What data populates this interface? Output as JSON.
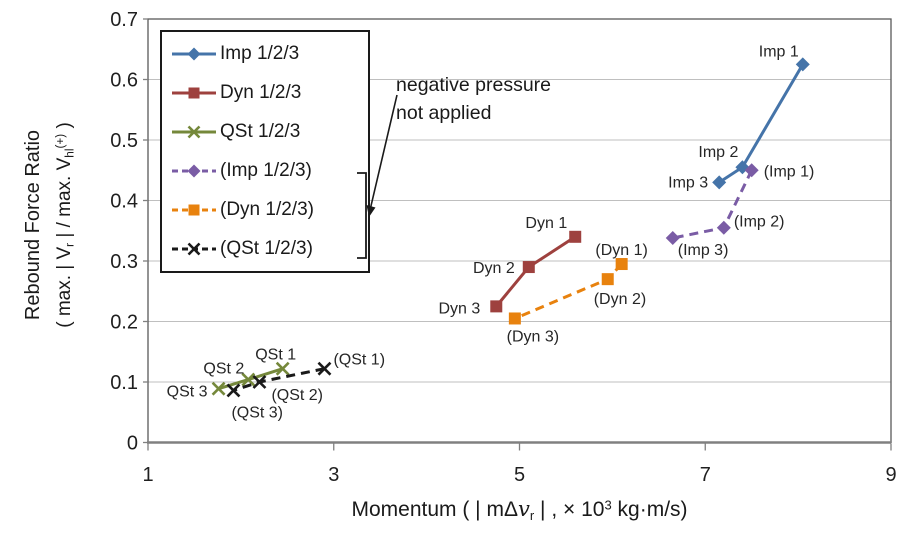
{
  "page": {
    "background": "#ffffff"
  },
  "annotation": {
    "line1": "negative pressure",
    "line2": "not applied"
  },
  "chart_data": {
    "type": "line",
    "title": "",
    "xlabel_parts": [
      {
        "t": "Momentum ( | mΔ"
      },
      {
        "t": "v",
        "s": "i"
      },
      {
        "t": "r",
        "s": "sub"
      },
      {
        "t": " | ,  × 10"
      },
      {
        "t": "3",
        "s": "sup"
      },
      {
        "t": " kg·m/s)"
      }
    ],
    "ylabel_line1": "Rebound Force Ratio",
    "ylabel_line2_parts": [
      {
        "t": "( max. | V"
      },
      {
        "t": "r",
        "s": "sub"
      },
      {
        "t": " | / max. V"
      },
      {
        "t": "hl",
        "s": "sub"
      },
      {
        "t": "(+)",
        "s": "sup"
      },
      {
        "t": " )"
      }
    ],
    "xlim": [
      1,
      9
    ],
    "ylim": [
      0,
      0.7
    ],
    "x_tick_values": [
      1,
      3,
      5,
      7,
      9
    ],
    "x_tick_labels": [
      "1",
      "3",
      "5",
      "7",
      "9"
    ],
    "y_tick_values": [
      0,
      0.1,
      0.2,
      0.3,
      0.4,
      0.5,
      0.6,
      0.7
    ],
    "y_tick_labels": [
      "0",
      "0.1",
      "0.2",
      "0.3",
      "0.4",
      "0.5",
      "0.6",
      "0.7"
    ],
    "grid": "horizontal-only",
    "legend_position": "inside-top-left",
    "colors": {
      "grid": "#bfbfbf",
      "axis": "#808080",
      "border": "#595959",
      "text": "#1f1f1f"
    },
    "series": [
      {
        "name": "Imp 1/2/3",
        "color": "#4574A9",
        "line": "solid",
        "marker": "diamond",
        "points": [
          {
            "x": 8.05,
            "y": 0.625,
            "label": "Imp 1",
            "anchor": "end",
            "dx": -4,
            "dy": -8
          },
          {
            "x": 7.4,
            "y": 0.455,
            "label": "Imp 2",
            "anchor": "end",
            "dx": -4,
            "dy": -10
          },
          {
            "x": 7.15,
            "y": 0.43,
            "label": "Imp 3",
            "anchor": "end",
            "dx": -11,
            "dy": 5
          }
        ]
      },
      {
        "name": "Dyn 1/2/3",
        "color": "#9E413E",
        "line": "solid",
        "marker": "square",
        "points": [
          {
            "x": 5.6,
            "y": 0.34,
            "label": "Dyn 1",
            "anchor": "end",
            "dx": -8,
            "dy": -9
          },
          {
            "x": 5.1,
            "y": 0.29,
            "label": "Dyn 2",
            "anchor": "end",
            "dx": -14,
            "dy": 6
          },
          {
            "x": 4.75,
            "y": 0.225,
            "label": "Dyn 3",
            "anchor": "end",
            "dx": -16,
            "dy": 7
          }
        ]
      },
      {
        "name": "QSt 1/2/3",
        "color": "#75883B",
        "line": "solid",
        "marker": "x",
        "points": [
          {
            "x": 2.45,
            "y": 0.122,
            "label": "QSt 1",
            "anchor": "middle",
            "dx": -7,
            "dy": -9
          },
          {
            "x": 2.08,
            "y": 0.104,
            "label": "QSt 2",
            "anchor": "end",
            "dx": -4,
            "dy": -6
          },
          {
            "x": 1.76,
            "y": 0.089,
            "label": "QSt 3",
            "anchor": "end",
            "dx": -11,
            "dy": 8
          }
        ]
      },
      {
        "name": "(Imp 1/2/3)",
        "color": "#7A5CA5",
        "line": "dashed",
        "marker": "diamond",
        "points": [
          {
            "x": 7.5,
            "y": 0.45,
            "label": "(Imp 1)",
            "anchor": "start",
            "dx": 12,
            "dy": 6
          },
          {
            "x": 7.2,
            "y": 0.355,
            "label": "(Imp 2)",
            "anchor": "start",
            "dx": 10,
            "dy": -1
          },
          {
            "x": 6.65,
            "y": 0.338,
            "label": "(Imp 3)",
            "anchor": "start",
            "dx": 5,
            "dy": 17
          }
        ]
      },
      {
        "name": "(Dyn 1/2/3)",
        "color": "#E8820E",
        "line": "dashed",
        "marker": "square",
        "points": [
          {
            "x": 6.1,
            "y": 0.295,
            "label": "(Dyn 1)",
            "anchor": "middle",
            "dx": 0,
            "dy": -9
          },
          {
            "x": 5.95,
            "y": 0.27,
            "label": "(Dyn 2)",
            "anchor": "start",
            "dx": -14,
            "dy": 25
          },
          {
            "x": 4.95,
            "y": 0.205,
            "label": "(Dyn 3)",
            "anchor": "middle",
            "dx": 18,
            "dy": 23
          }
        ]
      },
      {
        "name": "(QSt 1/2/3)",
        "color": "#1A1A1A",
        "line": "dashed",
        "marker": "x",
        "points": [
          {
            "x": 2.9,
            "y": 0.122,
            "label": "(QSt 1)",
            "anchor": "start",
            "dx": 9,
            "dy": -4
          },
          {
            "x": 2.2,
            "y": 0.1,
            "label": "(QSt 2)",
            "anchor": "start",
            "dx": 12,
            "dy": 18
          },
          {
            "x": 1.92,
            "y": 0.086,
            "label": "(QSt 3)",
            "anchor": "start",
            "dx": -2,
            "dy": 27
          }
        ]
      }
    ]
  }
}
